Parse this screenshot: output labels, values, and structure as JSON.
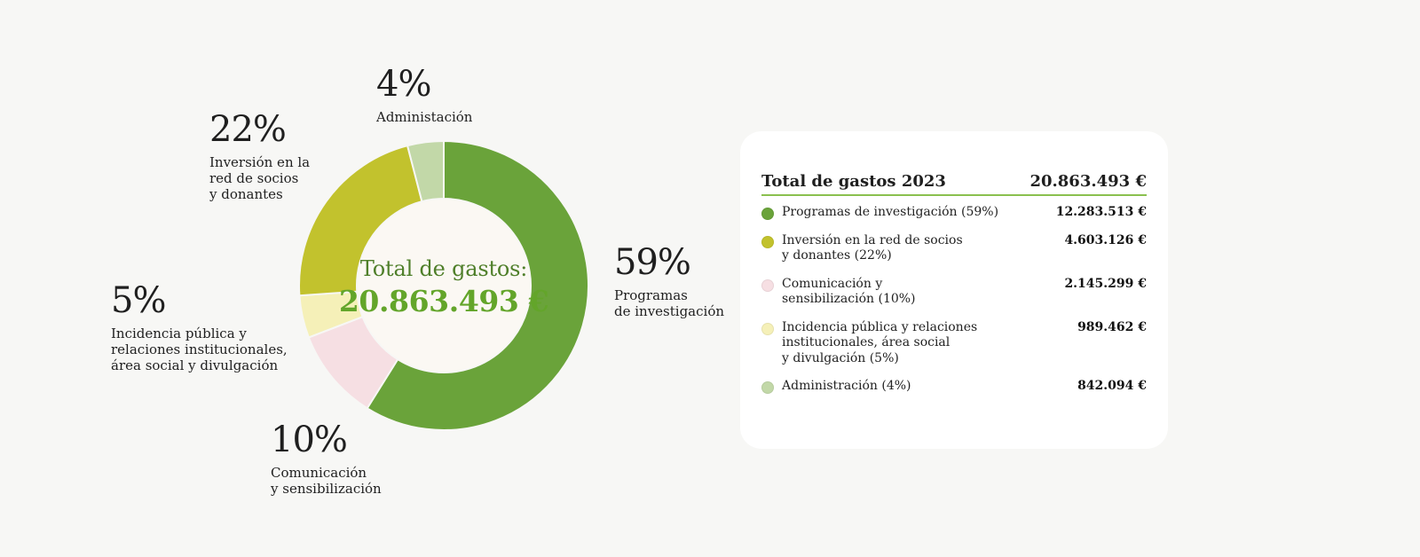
{
  "chart_data": {
    "type": "pie",
    "center": {
      "title": "Total de gastos:",
      "value": "20.863.493 €"
    },
    "slices": [
      {
        "name": "Programas de investigación",
        "percent_label": "59%",
        "label": "Programas\nde investigación",
        "value": 12283513,
        "color": "#6aa33a"
      },
      {
        "name": "Comunicación y sensibilización",
        "percent_label": "10%",
        "label": "Comunicación\ny sensibilización",
        "value": 2145299,
        "color": "#f6dfe3"
      },
      {
        "name": "Incidencia pública y relaciones institucionales, área social y divulgación",
        "percent_label": "5%",
        "label": "Incidencia pública y\nrelaciones institucionales,\nárea social y divulgación",
        "value": 989462,
        "color": "#f5f0b8"
      },
      {
        "name": "Inversión en la red de socios y donantes",
        "percent_label": "22%",
        "label": "Inversión en la\nred de socios\ny donantes",
        "value": 4603126,
        "color": "#c2c22d"
      },
      {
        "name": "Administación",
        "percent_label": "4%",
        "label": "Administación",
        "value": 842094,
        "color": "#c2d8a8"
      }
    ]
  },
  "summary": {
    "title": "Total de gastos 2023",
    "total": "20.863.493 €",
    "rows": [
      {
        "name": "Programas de investigación (59%)",
        "amount": "12.283.513 €",
        "color": "#6aa33a"
      },
      {
        "name": "Inversión en la red de socios\ny donantes (22%)",
        "amount": "4.603.126 €",
        "color": "#c2c22d"
      },
      {
        "name": "Comunicación y\nsensibilización (10%)",
        "amount": "2.145.299 €",
        "color": "#f6dfe3"
      },
      {
        "name": "Incidencia pública y relaciones\ninstitucionales, área social\ny divulgación (5%)",
        "amount": "989.462 €",
        "color": "#f5f0b8"
      },
      {
        "name": "Administración (4%)",
        "amount": "842.094 €",
        "color": "#c2d8a8"
      }
    ]
  }
}
